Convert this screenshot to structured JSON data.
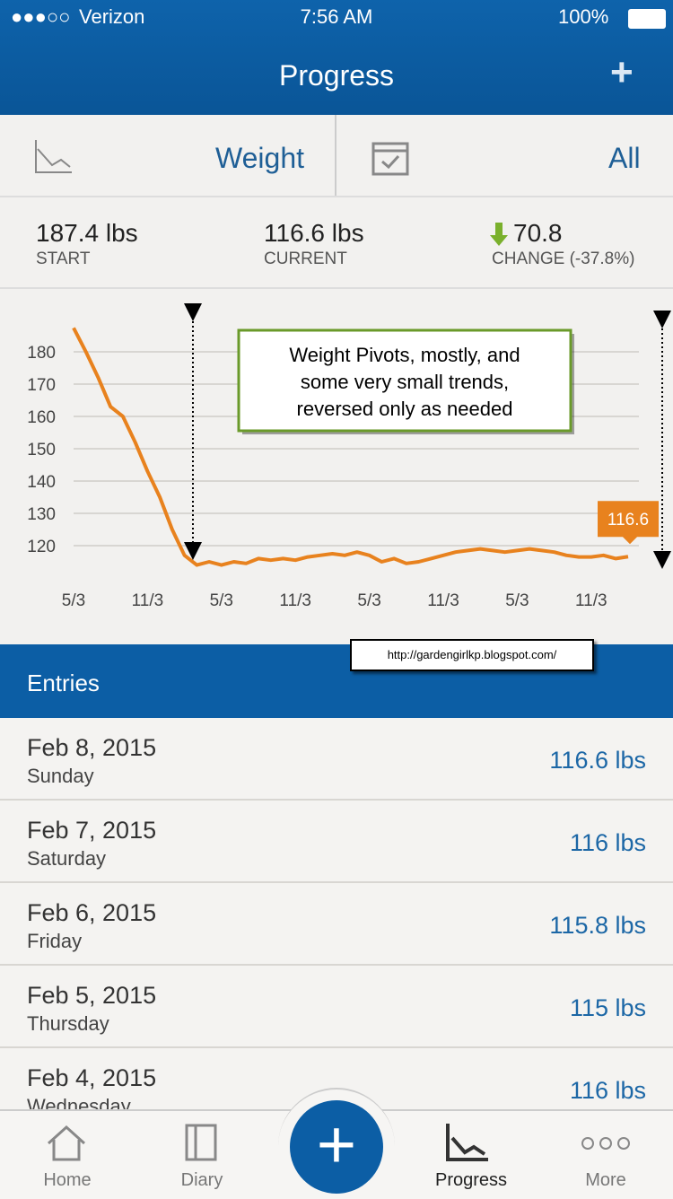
{
  "status_bar": {
    "carrier": "Verizon",
    "time": "7:56 AM",
    "battery": "100%"
  },
  "header": {
    "title": "Progress"
  },
  "selector": {
    "metric": "Weight",
    "range": "All"
  },
  "stats": [
    {
      "value": "187.4 lbs",
      "label": "START"
    },
    {
      "value": "116.6 lbs",
      "label": "CURRENT"
    },
    {
      "value": "70.8",
      "label": "CHANGE (-37.8%)"
    }
  ],
  "chart_data": {
    "type": "line",
    "categories": [
      "5/3",
      null,
      null,
      null,
      null,
      null,
      "11/3",
      null,
      null,
      null,
      null,
      null,
      "5/3",
      null,
      null,
      null,
      null,
      null,
      "11/3",
      null,
      null,
      null,
      null,
      null,
      "5/3",
      null,
      null,
      null,
      null,
      null,
      "11/3",
      null,
      null,
      null,
      null,
      null,
      "5/3",
      null,
      null,
      null,
      null,
      null,
      "11/3",
      null,
      null,
      null
    ],
    "series": [
      {
        "name": "Weight",
        "color": "#e8821e",
        "values": [
          187.4,
          180,
          172,
          163,
          160,
          152,
          143,
          135,
          125,
          117,
          114,
          115,
          114,
          115,
          114.5,
          116,
          115.5,
          116,
          115.5,
          116.5,
          117,
          117.5,
          117,
          118,
          117,
          115,
          116,
          114.5,
          115,
          116,
          117,
          118,
          118.5,
          119,
          118.5,
          118,
          118.5,
          119,
          118.5,
          118,
          117,
          116.5,
          116.5,
          117,
          116,
          116.6
        ]
      }
    ],
    "ylim": [
      108,
      192
    ],
    "yticks": [
      120,
      130,
      140,
      150,
      160,
      170,
      180
    ],
    "grid": true,
    "annotation": [
      "Weight Pivots, mostly, and",
      "some very small trends,",
      "reversed only as needed"
    ]
  },
  "watermark": "http://gardengirlkp.blogspot.com/",
  "entries": {
    "title": "Entries",
    "rows": [
      {
        "date": "Feb 8, 2015",
        "day": "Sunday",
        "weight": "116.6 lbs"
      },
      {
        "date": "Feb 7, 2015",
        "day": "Saturday",
        "weight": "116 lbs"
      },
      {
        "date": "Feb 6, 2015",
        "day": "Friday",
        "weight": "115.8 lbs"
      },
      {
        "date": "Feb 5, 2015",
        "day": "Thursday",
        "weight": "115 lbs"
      },
      {
        "date": "Feb 4, 2015",
        "day": "Wednesday",
        "weight": "116 lbs"
      }
    ]
  },
  "tab_bar": [
    "Home",
    "Diary",
    "Progress",
    "More"
  ]
}
